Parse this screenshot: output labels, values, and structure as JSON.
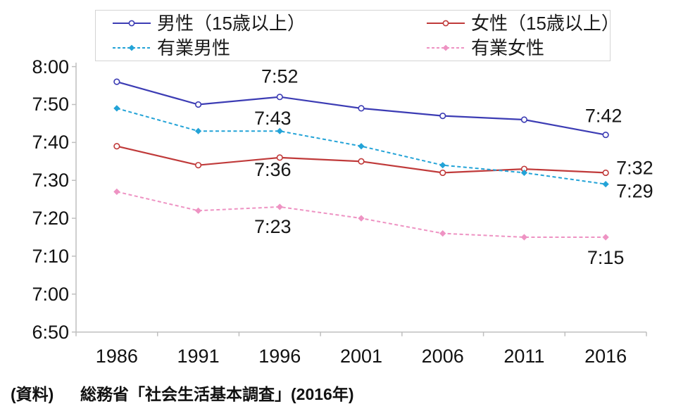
{
  "chart_data": {
    "type": "line",
    "title": "",
    "xlabel": "",
    "ylabel": "",
    "unit": "h:mm",
    "grid": false,
    "legend_position": "top",
    "ylim": [
      "6:50",
      "8:00"
    ],
    "y_ticks": [
      "8:00",
      "7:50",
      "7:40",
      "7:30",
      "7:20",
      "7:10",
      "7:00",
      "6:50"
    ],
    "categories": [
      "1986",
      "1991",
      "1996",
      "2001",
      "2006",
      "2011",
      "2016"
    ],
    "series": [
      {
        "key": "men",
        "name": "男性（15歳以上）",
        "color": "#3c3cb4",
        "line_style": "solid",
        "marker": "circle-open",
        "values": [
          "7:56",
          "7:50",
          "7:52",
          "7:49",
          "7:47",
          "7:46",
          "7:42"
        ]
      },
      {
        "key": "women",
        "name": "女性（15歳以上）",
        "color": "#c03a3a",
        "line_style": "solid",
        "marker": "circle-open",
        "values": [
          "7:39",
          "7:34",
          "7:36",
          "7:35",
          "7:32",
          "7:33",
          "7:32"
        ]
      },
      {
        "key": "employed-men",
        "name": "有業男性",
        "color": "#23a3d7",
        "line_style": "dashed",
        "marker": "diamond",
        "values": [
          "7:49",
          "7:43",
          "7:43",
          "7:39",
          "7:34",
          "7:32",
          "7:29"
        ]
      },
      {
        "key": "employed-women",
        "name": "有業女性",
        "color": "#ee93c3",
        "line_style": "dashed",
        "marker": "diamond",
        "values": [
          "7:27",
          "7:22",
          "7:23",
          "7:20",
          "7:16",
          "7:15",
          "7:15"
        ]
      }
    ],
    "point_labels": [
      {
        "id": "men-1996",
        "series": "men",
        "category": "1996",
        "text": "7:52"
      },
      {
        "id": "employed-men-1996",
        "series": "employed-men",
        "category": "1996",
        "text": "7:43"
      },
      {
        "id": "women-1996",
        "series": "women",
        "category": "1996",
        "text": "7:36"
      },
      {
        "id": "employed-women-1996",
        "series": "employed-women",
        "category": "1996",
        "text": "7:23"
      },
      {
        "id": "men-2016",
        "series": "men",
        "category": "2016",
        "text": "7:42"
      },
      {
        "id": "women-2016",
        "series": "women",
        "category": "2016",
        "text": "7:32"
      },
      {
        "id": "employed-men-2016",
        "series": "employed-men",
        "category": "2016",
        "text": "7:29"
      },
      {
        "id": "employed-women-2016",
        "series": "employed-women",
        "category": "2016",
        "text": "7:15"
      }
    ],
    "source": {
      "prefix": "(資料)",
      "text": "総務省「社会生活基本調査」(2016年)"
    }
  }
}
